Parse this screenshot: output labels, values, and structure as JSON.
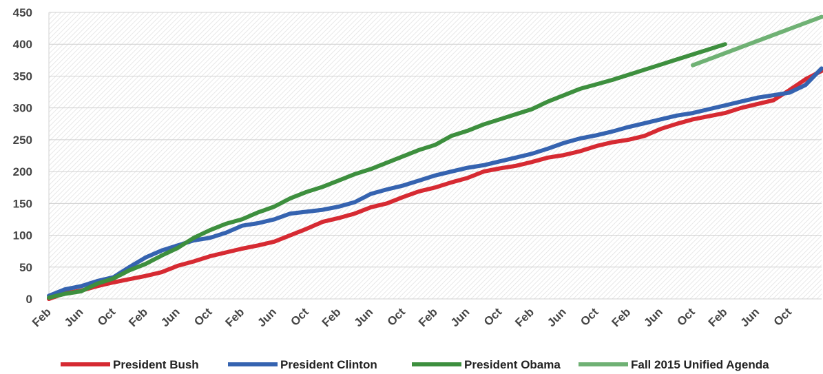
{
  "chart_data": {
    "type": "line",
    "title": "",
    "xlabel": "",
    "ylabel": "",
    "ylim": [
      0,
      450
    ],
    "yticks": [
      0,
      50,
      100,
      150,
      200,
      250,
      300,
      350,
      400,
      450
    ],
    "xlim": [
      0,
      96
    ],
    "x_tick_positions": [
      0,
      4,
      8,
      12,
      16,
      20,
      24,
      28,
      32,
      36,
      40,
      44,
      48,
      52,
      56,
      60,
      64,
      68,
      72,
      76,
      80,
      84,
      88,
      92
    ],
    "x_tick_labels": [
      "Feb",
      "Jun",
      "Oct",
      "Feb",
      "Jun",
      "Oct",
      "Feb",
      "Jun",
      "Oct",
      "Feb",
      "Jun",
      "Oct",
      "Feb",
      "Jun",
      "Oct",
      "Feb",
      "Jun",
      "Oct",
      "Feb",
      "Jun",
      "Oct",
      "Feb",
      "Jun",
      "Oct"
    ],
    "grid": true,
    "legend_position": "bottom",
    "series": [
      {
        "name": "President Bush",
        "color": "#d62a32",
        "x": [
          0,
          2,
          4,
          6,
          8,
          10,
          12,
          14,
          16,
          18,
          20,
          22,
          24,
          26,
          28,
          30,
          32,
          34,
          36,
          38,
          40,
          42,
          44,
          46,
          48,
          50,
          52,
          54,
          56,
          58,
          60,
          62,
          64,
          66,
          68,
          70,
          72,
          74,
          76,
          78,
          80,
          82,
          84,
          86,
          88,
          90,
          92,
          94,
          96
        ],
        "y": [
          0,
          9,
          13,
          20,
          26,
          31,
          36,
          42,
          52,
          59,
          67,
          73,
          79,
          84,
          90,
          100,
          110,
          121,
          127,
          134,
          144,
          150,
          160,
          169,
          175,
          183,
          190,
          200,
          205,
          209,
          215,
          222,
          226,
          232,
          240,
          246,
          250,
          256,
          267,
          275,
          282,
          287,
          292,
          300,
          306,
          312,
          328,
          345,
          358
        ]
      },
      {
        "name": "President Clinton",
        "color": "#3563b0",
        "x": [
          0,
          2,
          4,
          6,
          8,
          10,
          12,
          14,
          16,
          18,
          20,
          22,
          24,
          26,
          28,
          30,
          32,
          34,
          36,
          38,
          40,
          42,
          44,
          46,
          48,
          50,
          52,
          54,
          56,
          58,
          60,
          62,
          64,
          66,
          68,
          70,
          72,
          74,
          76,
          78,
          80,
          82,
          84,
          86,
          88,
          90,
          92,
          94,
          96
        ],
        "y": [
          5,
          15,
          20,
          28,
          34,
          50,
          65,
          76,
          84,
          92,
          96,
          104,
          115,
          119,
          125,
          134,
          137,
          140,
          145,
          152,
          165,
          172,
          178,
          186,
          194,
          200,
          206,
          210,
          216,
          222,
          228,
          236,
          245,
          252,
          257,
          263,
          270,
          276,
          282,
          288,
          292,
          298,
          304,
          310,
          316,
          320,
          324,
          336,
          362
        ]
      },
      {
        "name": "President Obama",
        "color": "#3d8f3e",
        "x": [
          0,
          2,
          4,
          6,
          8,
          10,
          12,
          14,
          16,
          18,
          20,
          22,
          24,
          26,
          28,
          30,
          32,
          34,
          36,
          38,
          40,
          42,
          44,
          46,
          48,
          50,
          52,
          54,
          56,
          58,
          60,
          62,
          64,
          66,
          68,
          70,
          72,
          74,
          76,
          78,
          80,
          82,
          84
        ],
        "y": [
          2,
          8,
          12,
          24,
          32,
          45,
          55,
          68,
          80,
          96,
          108,
          118,
          125,
          136,
          145,
          158,
          168,
          176,
          186,
          196,
          204,
          214,
          224,
          234,
          242,
          256,
          264,
          274,
          282,
          290,
          298,
          310,
          320,
          330,
          337,
          344,
          352,
          360,
          368,
          376,
          384,
          392,
          400
        ]
      },
      {
        "name": "Fall 2015 Unified Agenda",
        "color": "#6fb174",
        "x": [
          80,
          84,
          88,
          92,
          96
        ],
        "y": [
          367,
          386,
          405,
          424,
          443
        ]
      }
    ]
  }
}
